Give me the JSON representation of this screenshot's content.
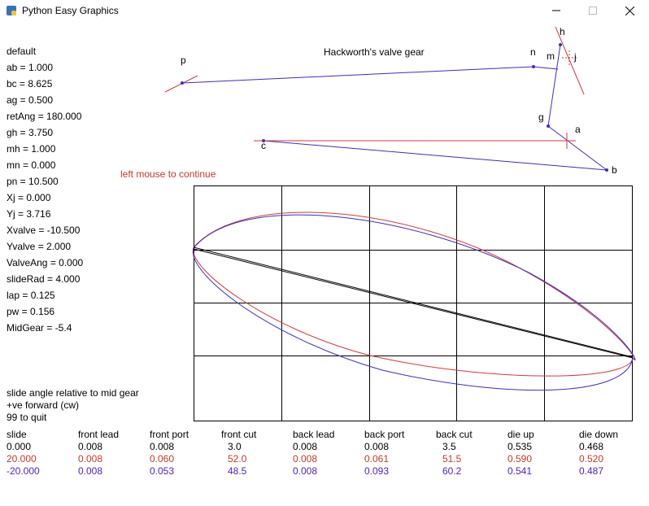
{
  "window": {
    "title": "Python Easy Graphics"
  },
  "heading": "Hackworth's valve gear",
  "prompt": "left mouse to continue",
  "params": [
    "default",
    "ab = 1.000",
    "bc = 8.625",
    "ag = 0.500",
    "retAng = 180.000",
    "gh = 3.750",
    "mh = 1.000",
    "mn = 0.000",
    "pn = 10.500",
    "Xj = 0.000",
    "Yj = 3.716",
    "Xvalve = -10.500",
    "Yvalve = 2.000",
    "ValveAng = 0.000",
    "slideRad = 4.000",
    "lap = 0.125",
    "pw = 0.156",
    "MidGear = -5.4"
  ],
  "notes": [
    "slide angle relative to mid gear",
    "+ve forward (cw)",
    "99 to quit"
  ],
  "point_labels": {
    "p": "p",
    "n": "n",
    "m": "m",
    "h": "h",
    "j": "j",
    "g": "g",
    "a": "a",
    "c": "c",
    "b": "b"
  },
  "table": {
    "headers": [
      "slide",
      "front lead",
      "front port",
      "front cut",
      "back lead",
      "back port",
      "back cut",
      "die up",
      "die down"
    ],
    "rows": [
      {
        "color": "#000000",
        "cells": [
          "0.000",
          "0.008",
          "0.008",
          "3.0",
          "0.008",
          "0.008",
          "3.5",
          "0.535",
          "0.468"
        ]
      },
      {
        "color": "#c0392b",
        "cells": [
          "20.000",
          "0.008",
          "0.060",
          "52.0",
          "0.008",
          "0.061",
          "51.5",
          "0.590",
          "0.520"
        ]
      },
      {
        "color": "#4b1fb5",
        "cells": [
          "-20.000",
          "0.008",
          "0.053",
          "48.5",
          "0.008",
          "0.093",
          "60.2",
          "0.541",
          "0.487"
        ]
      }
    ]
  },
  "colors": {
    "red": "#d23a3a",
    "blue": "#3b2fc0",
    "grid": "#000000"
  },
  "icons": [
    "python-icon",
    "minimize-icon",
    "maximize-icon",
    "close-icon"
  ]
}
